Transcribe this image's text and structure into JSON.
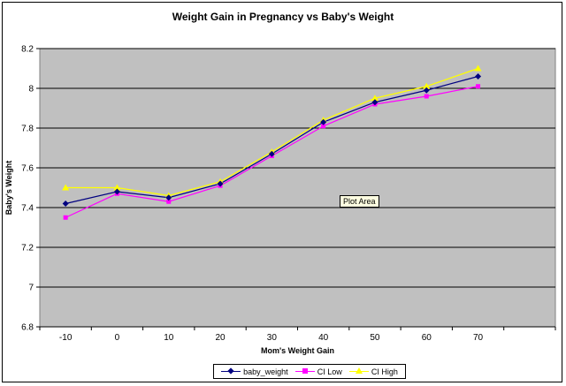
{
  "chart_data": {
    "type": "line",
    "title": "Weight Gain in Pregnancy vs Baby's Weight",
    "xlabel": "Mom's Weight Gain",
    "ylabel": "Baby's Weight",
    "categories": [
      "-10",
      "0",
      "10",
      "20",
      "30",
      "40",
      "50",
      "60",
      "70"
    ],
    "y_ticks": [
      "6.8",
      "7",
      "7.2",
      "7.4",
      "7.6",
      "7.8",
      "8",
      "8.2"
    ],
    "ylim": [
      6.8,
      8.2
    ],
    "grid": true,
    "legend_position": "bottom",
    "tooltip": "Plot Area",
    "series": [
      {
        "name": "baby_weight",
        "color": "#000080",
        "marker": "diamond",
        "values": [
          7.42,
          7.48,
          7.45,
          7.52,
          7.67,
          7.83,
          7.93,
          7.99,
          8.06
        ]
      },
      {
        "name": "CI Low",
        "color": "#ff00ff",
        "marker": "square",
        "values": [
          7.35,
          7.47,
          7.43,
          7.51,
          7.66,
          7.81,
          7.92,
          7.96,
          8.01
        ]
      },
      {
        "name": "CI High",
        "color": "#ffff00",
        "marker": "triangle",
        "values": [
          7.5,
          7.5,
          7.46,
          7.53,
          7.68,
          7.84,
          7.95,
          8.01,
          8.1
        ]
      }
    ],
    "plot_background": "#c0c0c0",
    "gridline_color": "#000000"
  }
}
